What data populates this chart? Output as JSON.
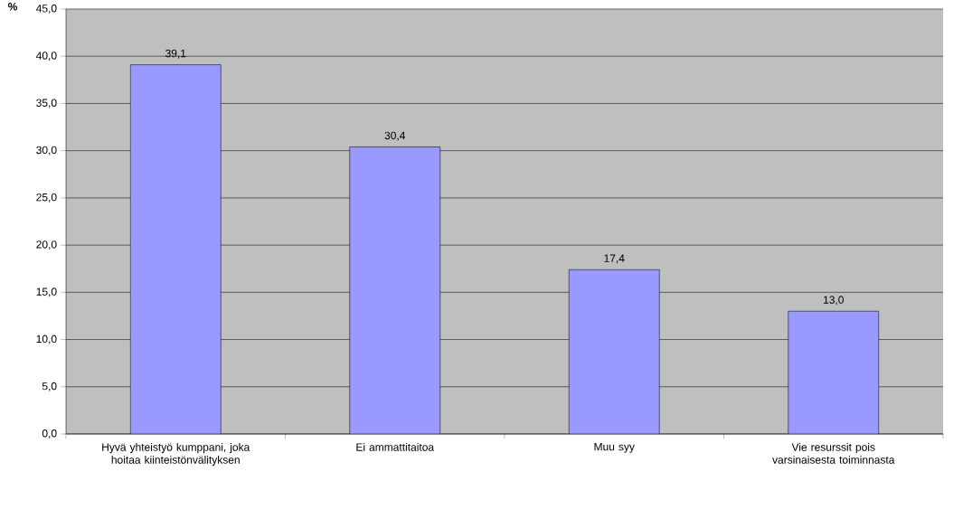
{
  "chart_data": {
    "type": "bar",
    "ylabel": "%",
    "categories": [
      "Hyvä yhteistyö kumppani, joka hoitaa kiinteistönvälityksen",
      "Ei ammattitaitoa",
      "Muu syy",
      "Vie resurssit pois varsinaisesta toiminnasta"
    ],
    "values": [
      39.1,
      30.4,
      17.4,
      13.0
    ],
    "value_labels": [
      "39,1",
      "30,4",
      "17,4",
      "13,0"
    ],
    "color": "#9999ff",
    "ylim": [
      0,
      45
    ],
    "yticks": [
      {
        "value": 0,
        "label": "0,0"
      },
      {
        "value": 5,
        "label": "5,0"
      },
      {
        "value": 10,
        "label": "10,0"
      },
      {
        "value": 15,
        "label": "15,0"
      },
      {
        "value": 20,
        "label": "20,0"
      },
      {
        "value": 25,
        "label": "25,0"
      },
      {
        "value": 30,
        "label": "30,0"
      },
      {
        "value": 35,
        "label": "35,0"
      },
      {
        "value": 40,
        "label": "40,0"
      },
      {
        "value": 45,
        "label": "45,0"
      }
    ],
    "grid": "y"
  }
}
